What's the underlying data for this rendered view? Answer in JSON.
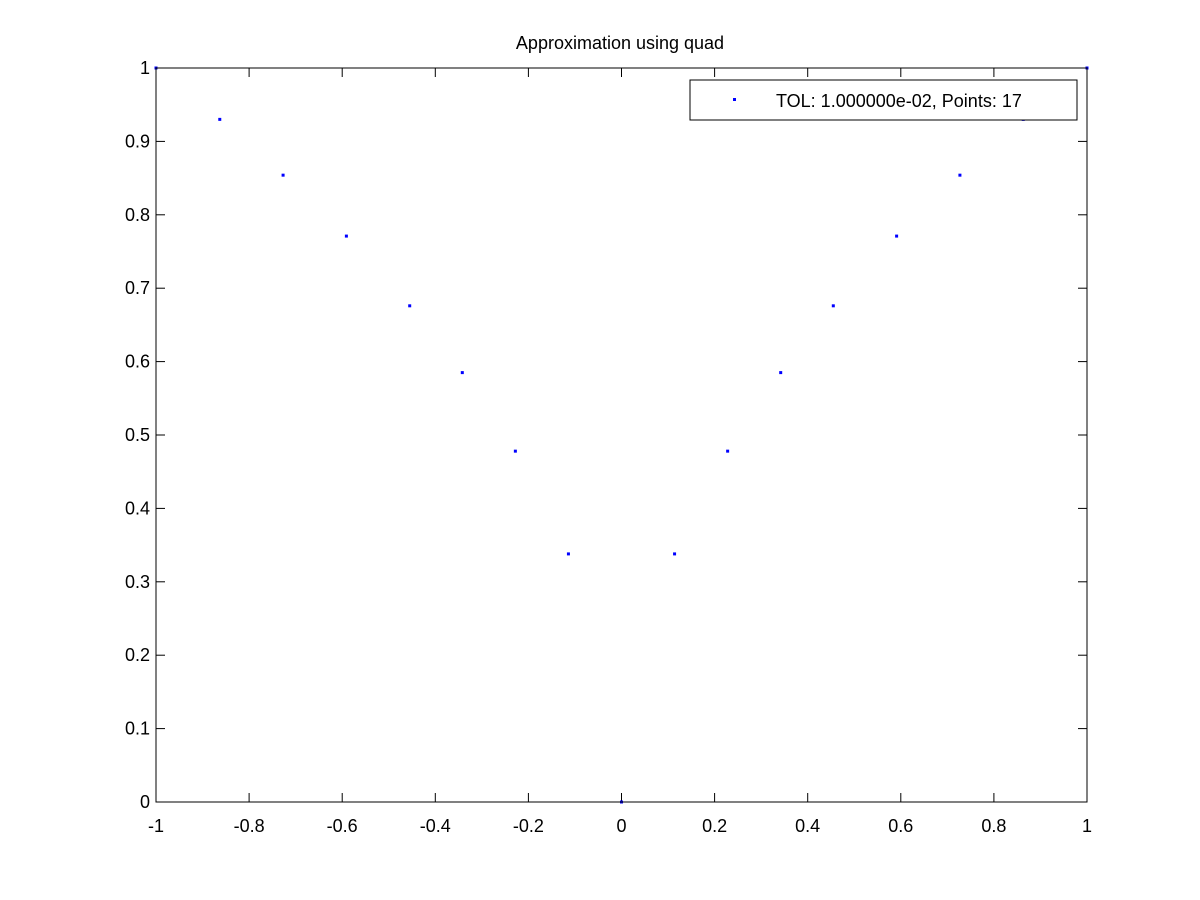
{
  "chart_data": {
    "type": "scatter",
    "title": "Approximation using quad",
    "xlabel": "",
    "ylabel": "",
    "xlim": [
      -1,
      1
    ],
    "ylim": [
      0,
      1
    ],
    "grid": false,
    "legend_location": "top-right",
    "x_ticks": [
      -1,
      -0.8,
      -0.6,
      -0.4,
      -0.2,
      0,
      0.2,
      0.4,
      0.6,
      0.8,
      1
    ],
    "x_tick_labels": [
      "-1",
      "-0.8",
      "-0.6",
      "-0.4",
      "-0.2",
      "0",
      "0.2",
      "0.4",
      "0.6",
      "0.8",
      "1"
    ],
    "y_ticks": [
      0,
      0.1,
      0.2,
      0.3,
      0.4,
      0.5,
      0.6,
      0.7,
      0.8,
      0.9,
      1
    ],
    "y_tick_labels": [
      "0",
      "0.1",
      "0.2",
      "0.3",
      "0.4",
      "0.5",
      "0.6",
      "0.7",
      "0.8",
      "0.9",
      "1"
    ],
    "series": [
      {
        "name": "TOL: 1.000000e-02, Points: 17",
        "color": "#0000ff",
        "marker": "point",
        "x": [
          -1,
          -0.863,
          -0.727,
          -0.591,
          -0.455,
          -0.342,
          -0.228,
          -0.114,
          0,
          0.114,
          0.228,
          0.342,
          0.455,
          0.591,
          0.727,
          0.863,
          1
        ],
        "y": [
          1,
          0.93,
          0.854,
          0.771,
          0.676,
          0.585,
          0.478,
          0.338,
          0,
          0.338,
          0.478,
          0.585,
          0.676,
          0.771,
          0.854,
          0.93,
          1
        ]
      }
    ]
  }
}
